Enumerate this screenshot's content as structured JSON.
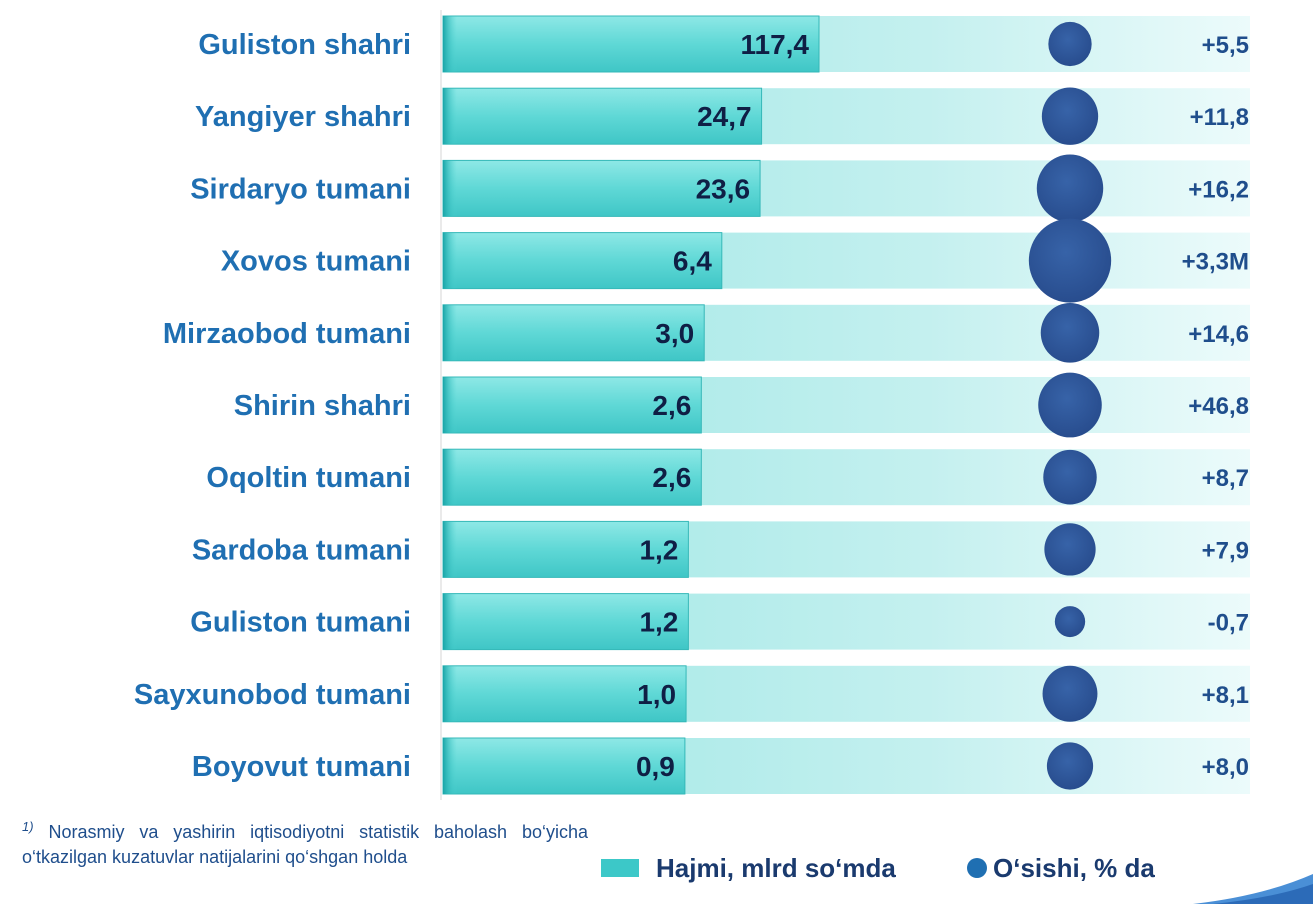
{
  "chart_data": {
    "type": "bar",
    "orientation": "horizontal",
    "categories": [
      "Guliston shahri",
      "Yangiyer shahri",
      "Sirdaryo tumani",
      "Xovos tumani",
      "Mirzaobod tumani",
      "Shirin shahri",
      "Oqoltin tumani",
      "Sardoba tumani",
      "Guliston tumani",
      "Sayxunobod tumani",
      "Boyovut tumani"
    ],
    "series": [
      {
        "name": "Hajmi, mlrd so‘mda",
        "values": [
          117.4,
          24.7,
          23.6,
          6.4,
          3.0,
          2.6,
          2.6,
          1.2,
          1.2,
          1.0,
          0.9
        ],
        "labels": [
          "117,4",
          "24,7",
          "23,6",
          "6,4",
          "3,0",
          "2,6",
          "2,6",
          "1,2",
          "1,2",
          "1,0",
          "0,9"
        ],
        "color": "#3cc8c8"
      },
      {
        "name": "O‘sishi, % da",
        "labels": [
          "+5,5",
          "+11,8",
          "+16,2",
          "+3,3M",
          "+14,6",
          "+46,8",
          "+8,7",
          "+7,9",
          "-0,7",
          "+8,1",
          "+8,0"
        ],
        "bubble_relative_size": [
          0.6,
          0.78,
          0.92,
          1.14,
          0.81,
          0.88,
          0.74,
          0.71,
          0.42,
          0.76,
          0.64
        ],
        "color": "#2d5597"
      }
    ],
    "scale": "non-linear",
    "grid": false,
    "legend_position": "bottom"
  },
  "footnote": {
    "marker": "1)",
    "text": " Norasmiy va yashirin iqtisodiyotni statistik baholash bo‘yicha o‘tkazilgan kuzatuvlar natijalarini qo‘shgan holda"
  },
  "legend": {
    "volume_label": "Hajmi, mlrd so‘mda",
    "growth_label": "O‘sishi, % da"
  }
}
